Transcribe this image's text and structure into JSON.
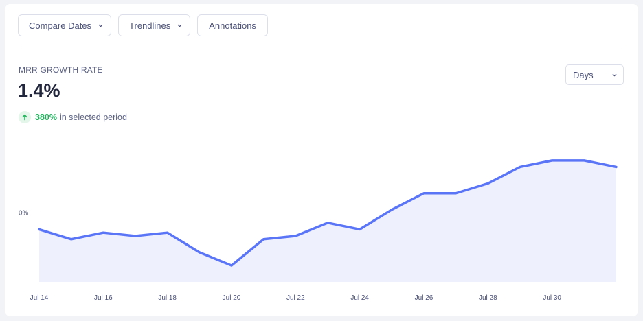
{
  "toolbar": {
    "compare_label": "Compare Dates",
    "trendlines_label": "Trendlines",
    "annotations_label": "Annotations"
  },
  "metric": {
    "label": "MRR GROWTH RATE",
    "value": "1.4%",
    "change_pct": "380%",
    "change_text": "in selected period"
  },
  "interval_select": {
    "value": "Days"
  },
  "colors": {
    "line": "#5b75f7",
    "area": "#eef0fd",
    "positive": "#1fb35a"
  },
  "chart_data": {
    "type": "area",
    "ytick_labels": [
      "0%"
    ],
    "x_tick_labels": [
      "Jul 14",
      "Jul 16",
      "Jul 18",
      "Jul 20",
      "Jul 22",
      "Jul 24",
      "Jul 26",
      "Jul 28",
      "Jul 30"
    ],
    "x": [
      "Jul 14",
      "Jul 15",
      "Jul 16",
      "Jul 17",
      "Jul 18",
      "Jul 19",
      "Jul 20",
      "Jul 21",
      "Jul 22",
      "Jul 23",
      "Jul 24",
      "Jul 25",
      "Jul 26",
      "Jul 27",
      "Jul 28",
      "Jul 29",
      "Jul 30",
      "Jul 31",
      "Aug 1"
    ],
    "values": [
      -0.5,
      -0.8,
      -0.6,
      -0.7,
      -0.6,
      -1.2,
      -1.6,
      -0.8,
      -0.7,
      -0.3,
      -0.5,
      0.1,
      0.6,
      0.6,
      0.9,
      1.4,
      1.6,
      1.6,
      1.4
    ],
    "ylim": [
      -2.1,
      2.6
    ],
    "grid": true
  }
}
